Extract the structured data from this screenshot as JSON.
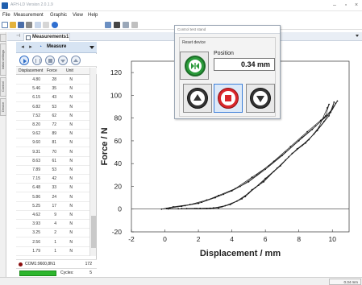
{
  "window": {
    "title": "AFH-LD  Version 2.0.1.9"
  },
  "menu": [
    "File",
    "Measurement",
    "Graphic",
    "View",
    "Help"
  ],
  "side_tabs": [
    "Initial settings",
    "Control",
    "Device"
  ],
  "doc_tab": {
    "label": "Measurements1"
  },
  "measurements_panel": {
    "selector_label": "Measure",
    "columns": [
      "Displacement",
      "Force",
      "Unit"
    ],
    "rows": [
      [
        "4.80",
        "28",
        "N"
      ],
      [
        "5.46",
        "35",
        "N"
      ],
      [
        "6.15",
        "43",
        "N"
      ],
      [
        "6.82",
        "53",
        "N"
      ],
      [
        "7.52",
        "62",
        "N"
      ],
      [
        "8.20",
        "72",
        "N"
      ],
      [
        "9.62",
        "89",
        "N"
      ],
      [
        "9.60",
        "81",
        "N"
      ],
      [
        "9.31",
        "70",
        "N"
      ],
      [
        "8.63",
        "61",
        "N"
      ],
      [
        "7.89",
        "53",
        "N"
      ],
      [
        "7.15",
        "42",
        "N"
      ],
      [
        "6.48",
        "33",
        "N"
      ],
      [
        "5.86",
        "24",
        "N"
      ],
      [
        "5.25",
        "17",
        "N"
      ],
      [
        "4.62",
        "9",
        "N"
      ],
      [
        "3.93",
        "4",
        "N"
      ],
      [
        "3.25",
        "2",
        "N"
      ],
      [
        "2.56",
        "1",
        "N"
      ],
      [
        "1.79",
        "1",
        "N"
      ]
    ],
    "port": {
      "label": "COM1:9600,8N1",
      "value": "172"
    },
    "cycles": {
      "label": "Cycles:",
      "value": "5",
      "progress": 1.0
    }
  },
  "dialog": {
    "title": "Control test stand",
    "reset_label": "Reset device",
    "position_label": "Position",
    "position_value": "0.34 mm"
  },
  "status_bar": {
    "position": "0.34 mm"
  },
  "colors": {
    "reset_green": "#2a9a3a",
    "stop_red": "#d9262b",
    "cycles_green": "#2db62d",
    "measure_bar": "#d7e4f3"
  },
  "chart_data": {
    "type": "line",
    "xlabel": "Displacement / mm",
    "ylabel": "Force / N",
    "xlim": [
      -2,
      11
    ],
    "ylim": [
      -20,
      130
    ],
    "xticks": [
      -2,
      0,
      2,
      4,
      6,
      8,
      10
    ],
    "yticks": [
      -20,
      0,
      20,
      40,
      60,
      80,
      100,
      120
    ],
    "grid": false,
    "series": [
      {
        "values": [
          [
            -0.2,
            0
          ],
          [
            0.5,
            2
          ],
          [
            1.5,
            4
          ],
          [
            2.5,
            8
          ],
          [
            3.5,
            13
          ],
          [
            4.5,
            20
          ],
          [
            5.5,
            30
          ],
          [
            6.5,
            42
          ],
          [
            7.5,
            55
          ],
          [
            8.5,
            68
          ],
          [
            9.3,
            78
          ],
          [
            9.6,
            82
          ],
          [
            9.8,
            92
          ],
          [
            9.7,
            89
          ],
          [
            9.2,
            72
          ],
          [
            8.6,
            61
          ],
          [
            7.9,
            53
          ],
          [
            7.2,
            43
          ],
          [
            6.5,
            33
          ],
          [
            5.9,
            24
          ],
          [
            5.2,
            17
          ],
          [
            4.6,
            9
          ],
          [
            3.9,
            4
          ],
          [
            3.2,
            1
          ],
          [
            2.5,
            0.5
          ],
          [
            1.8,
            0.5
          ],
          [
            0.8,
            0.3
          ],
          [
            0.2,
            0.2
          ]
        ]
      },
      {
        "values": [
          [
            0.3,
            1
          ],
          [
            1.2,
            3
          ],
          [
            2.2,
            6
          ],
          [
            3.2,
            12
          ],
          [
            4.2,
            18
          ],
          [
            5.2,
            28
          ],
          [
            6.2,
            38
          ],
          [
            7.2,
            50
          ],
          [
            8.2,
            63
          ],
          [
            9.0,
            73
          ],
          [
            9.9,
            85
          ],
          [
            10.3,
            95
          ],
          [
            10.2,
            93
          ],
          [
            9.5,
            77
          ],
          [
            8.9,
            66
          ],
          [
            8.2,
            56
          ],
          [
            7.4,
            46
          ],
          [
            6.7,
            36
          ],
          [
            6.0,
            27
          ],
          [
            5.4,
            19
          ],
          [
            4.8,
            11
          ],
          [
            4.0,
            5
          ],
          [
            3.4,
            2
          ],
          [
            2.7,
            0.8
          ],
          [
            1.9,
            0.5
          ],
          [
            1.0,
            0.4
          ]
        ]
      },
      {
        "values": [
          [
            0.1,
            0.5
          ],
          [
            1.0,
            2.5
          ],
          [
            2.0,
            5
          ],
          [
            3.0,
            10
          ],
          [
            4.0,
            16
          ],
          [
            5.0,
            24
          ],
          [
            6.0,
            35
          ],
          [
            7.0,
            47
          ],
          [
            8.0,
            60
          ],
          [
            8.8,
            70
          ],
          [
            9.5,
            80
          ],
          [
            10.0,
            88
          ],
          [
            10.1,
            94
          ],
          [
            9.8,
            82
          ],
          [
            9.1,
            69
          ],
          [
            8.4,
            58
          ],
          [
            7.6,
            49
          ],
          [
            6.9,
            38
          ],
          [
            6.2,
            29
          ],
          [
            5.6,
            21
          ],
          [
            5.0,
            14
          ],
          [
            4.3,
            7
          ],
          [
            3.6,
            3
          ],
          [
            2.9,
            1
          ],
          [
            2.1,
            0.6
          ],
          [
            1.3,
            0.4
          ]
        ]
      }
    ]
  }
}
